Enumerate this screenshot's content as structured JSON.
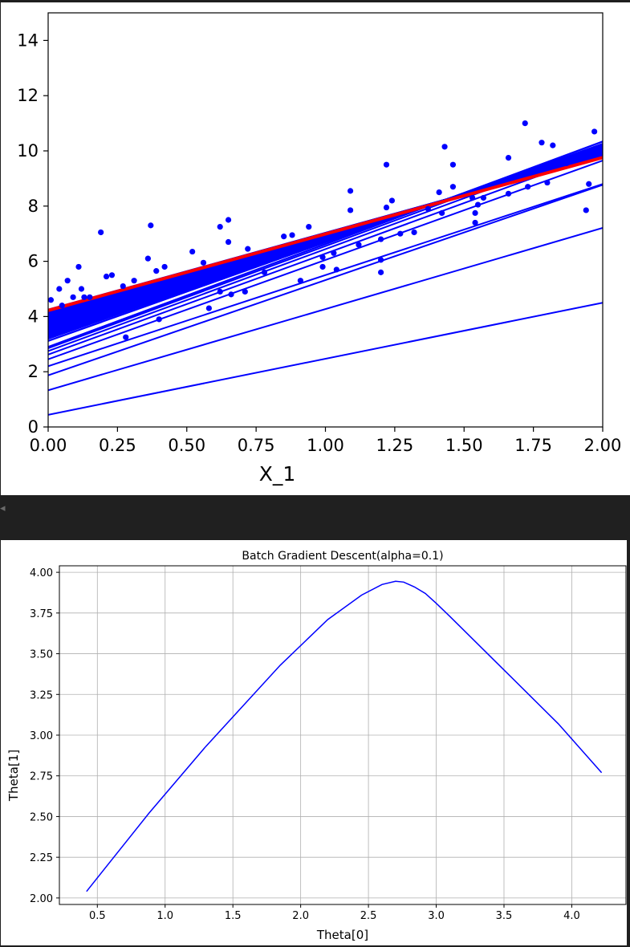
{
  "colors": {
    "blue": "#0000ff",
    "red": "#ff0000",
    "grid": "#b0b0b0",
    "dark_band": "#202020"
  },
  "chart_data": [
    {
      "type": "scatter",
      "title": "",
      "xlabel": "X_1",
      "ylabel": "",
      "xlim": [
        0,
        2
      ],
      "ylim": [
        0,
        15
      ],
      "grid": false,
      "xticks": [
        "0.00",
        "0.25",
        "0.50",
        "0.75",
        "1.00",
        "1.25",
        "1.50",
        "1.75",
        "2.00"
      ],
      "yticks": [
        "0",
        "2",
        "4",
        "6",
        "8",
        "10",
        "12",
        "14"
      ],
      "points": [
        [
          0.01,
          4.6
        ],
        [
          0.04,
          5.0
        ],
        [
          0.05,
          4.4
        ],
        [
          0.07,
          5.3
        ],
        [
          0.09,
          4.7
        ],
        [
          0.11,
          5.8
        ],
        [
          0.12,
          5.0
        ],
        [
          0.13,
          4.7
        ],
        [
          0.15,
          4.7
        ],
        [
          0.19,
          7.05
        ],
        [
          0.21,
          5.45
        ],
        [
          0.23,
          5.5
        ],
        [
          0.27,
          5.1
        ],
        [
          0.28,
          3.25
        ],
        [
          0.31,
          5.3
        ],
        [
          0.36,
          6.1
        ],
        [
          0.37,
          7.3
        ],
        [
          0.39,
          5.65
        ],
        [
          0.4,
          3.9
        ],
        [
          0.42,
          5.8
        ],
        [
          0.52,
          6.35
        ],
        [
          0.56,
          5.95
        ],
        [
          0.58,
          4.3
        ],
        [
          0.62,
          4.9
        ],
        [
          0.62,
          7.25
        ],
        [
          0.65,
          7.5
        ],
        [
          0.65,
          6.7
        ],
        [
          0.66,
          4.8
        ],
        [
          0.71,
          4.9
        ],
        [
          0.72,
          6.45
        ],
        [
          0.78,
          5.6
        ],
        [
          0.85,
          6.9
        ],
        [
          0.88,
          6.95
        ],
        [
          0.91,
          5.3
        ],
        [
          0.94,
          7.25
        ],
        [
          0.99,
          6.15
        ],
        [
          0.99,
          5.8
        ],
        [
          1.03,
          6.3
        ],
        [
          1.04,
          5.7
        ],
        [
          1.09,
          8.55
        ],
        [
          1.09,
          7.85
        ],
        [
          1.12,
          6.6
        ],
        [
          1.2,
          6.05
        ],
        [
          1.2,
          5.6
        ],
        [
          1.2,
          6.8
        ],
        [
          1.22,
          9.5
        ],
        [
          1.22,
          7.95
        ],
        [
          1.24,
          8.2
        ],
        [
          1.27,
          7.0
        ],
        [
          1.32,
          7.05
        ],
        [
          1.37,
          7.9
        ],
        [
          1.41,
          8.5
        ],
        [
          1.42,
          7.75
        ],
        [
          1.43,
          10.15
        ],
        [
          1.46,
          9.5
        ],
        [
          1.46,
          8.7
        ],
        [
          1.53,
          8.3
        ],
        [
          1.54,
          7.75
        ],
        [
          1.54,
          7.4
        ],
        [
          1.55,
          8.05
        ],
        [
          1.57,
          8.3
        ],
        [
          1.66,
          9.75
        ],
        [
          1.66,
          8.45
        ],
        [
          1.72,
          11.0
        ],
        [
          1.73,
          8.7
        ],
        [
          1.78,
          10.3
        ],
        [
          1.8,
          8.85
        ],
        [
          1.82,
          10.2
        ],
        [
          1.87,
          9.55
        ],
        [
          1.94,
          7.85
        ],
        [
          1.95,
          8.8
        ],
        [
          1.97,
          10.7
        ]
      ],
      "lines": [
        {
          "b": 0.44,
          "m": 2.03
        },
        {
          "b": 1.33,
          "m": 2.94
        },
        {
          "b": 1.87,
          "m": 3.45
        },
        {
          "b": 2.2,
          "m": 3.3
        },
        {
          "b": 2.45,
          "m": 3.6
        },
        {
          "b": 2.62,
          "m": 3.66
        },
        {
          "b": 2.75,
          "m": 3.69
        },
        {
          "b": 2.85,
          "m": 3.7
        }
      ],
      "fan_start": {
        "b": [
          2.9,
          4.25
        ],
        "m": [
          3.72,
          2.78
        ]
      },
      "red_line": {
        "b": 4.22,
        "m": 2.77
      }
    },
    {
      "type": "line",
      "title": "Batch Gradient Descent(alpha=0.1)",
      "xlabel": "Theta[0]",
      "ylabel": "Theta[1]",
      "xlim": [
        0.22,
        4.4
      ],
      "ylim": [
        1.96,
        4.04
      ],
      "grid": true,
      "xticks": [
        "0.5",
        "1.0",
        "1.5",
        "2.0",
        "2.5",
        "3.0",
        "3.5",
        "4.0"
      ],
      "yticks": [
        "2.00",
        "2.25",
        "2.50",
        "2.75",
        "3.00",
        "3.25",
        "3.50",
        "3.75",
        "4.00"
      ],
      "series": [
        {
          "name": "",
          "x": [
            0.42,
            0.88,
            1.3,
            1.85,
            2.2,
            2.45,
            2.6,
            2.7,
            2.76,
            2.84,
            2.92,
            3.0,
            3.1,
            3.5,
            3.9,
            4.22
          ],
          "y": [
            2.04,
            2.52,
            2.93,
            3.43,
            3.71,
            3.86,
            3.925,
            3.945,
            3.94,
            3.91,
            3.87,
            3.81,
            3.73,
            3.4,
            3.07,
            2.77
          ]
        }
      ]
    }
  ]
}
